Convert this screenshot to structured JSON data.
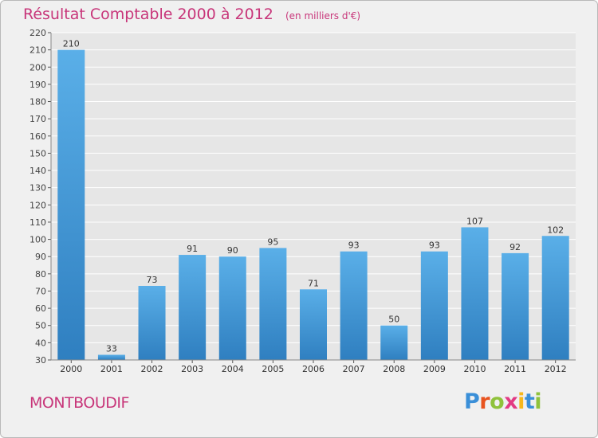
{
  "header": {
    "title": "Résultat Comptable 2000 à 2012",
    "unit": "(en milliers d'€)"
  },
  "footer": {
    "commune": "MONTBOUDIF",
    "logo_letters": [
      "P",
      "r",
      "o",
      "x",
      "i",
      "t",
      "i"
    ],
    "logo_colors": [
      "#3a8fd8",
      "#e8531f",
      "#8fc23b",
      "#e23a83",
      "#f6b71b",
      "#3a8fd8",
      "#8fc23b"
    ]
  },
  "colors": {
    "bar": "#5aafe8",
    "bar_dark": "#2f7fc0",
    "grid": "#ffffff",
    "plot_bg": "#e6e6e6",
    "title": "#c8367a"
  },
  "chart_data": {
    "type": "bar",
    "title": "Résultat Comptable 2000 à 2012",
    "xlabel": "",
    "ylabel": "",
    "categories": [
      "2000",
      "2001",
      "2002",
      "2003",
      "2004",
      "2005",
      "2006",
      "2007",
      "2008",
      "2009",
      "2010",
      "2011",
      "2012"
    ],
    "values": [
      210,
      33,
      73,
      91,
      90,
      95,
      71,
      93,
      50,
      93,
      107,
      92,
      102
    ],
    "ylim": [
      30,
      220
    ],
    "yticks": [
      30,
      40,
      50,
      60,
      70,
      80,
      90,
      100,
      110,
      120,
      130,
      140,
      150,
      160,
      170,
      180,
      190,
      200,
      210,
      220
    ],
    "grid": true,
    "legend": "none"
  }
}
